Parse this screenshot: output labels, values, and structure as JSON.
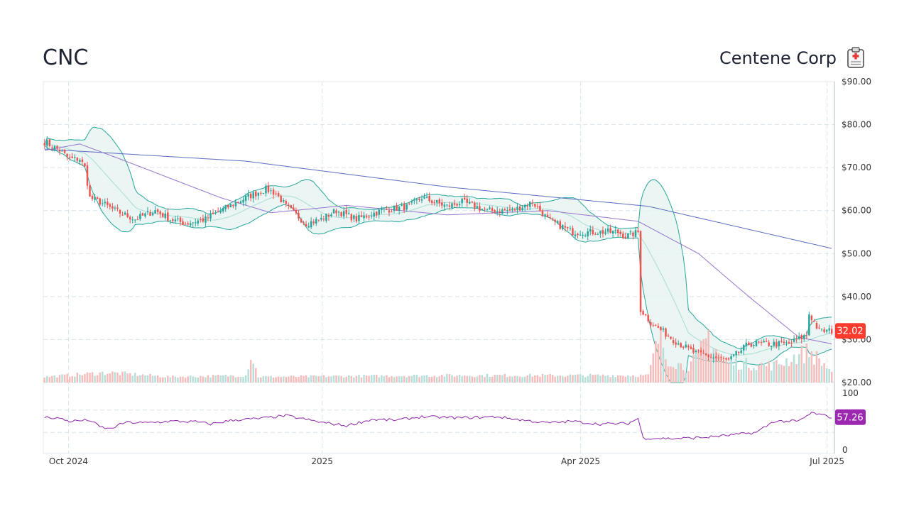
{
  "header": {
    "ticker": "CNC",
    "company_name": "Centene Corp",
    "logo_icon": "clipboard-medical-icon"
  },
  "colors": {
    "up": "#26a69a",
    "down": "#ef5350",
    "bb_line": "#26a69a",
    "bb_fill": "#e6f3f2",
    "ma_long": "#5c6bc0",
    "ma_mid": "#9575cd",
    "rsi": "#8e24aa",
    "price_badge": "#ff3b30",
    "rsi_badge": "#9c27b0"
  },
  "chart_data": {
    "type": "candlestick",
    "title": "CNC",
    "price_axis": {
      "ylim": [
        20,
        90
      ],
      "ticks": [
        20,
        30,
        40,
        50,
        60,
        70,
        80,
        90
      ],
      "tick_labels": [
        "$20.00",
        "$30.00",
        "$40.00",
        "$50.00",
        "$60.00",
        "$70.00",
        "$80.00",
        "$90.00"
      ]
    },
    "x_axis": {
      "tick_labels": [
        "Oct 2024",
        "2025",
        "Apr 2025",
        "Jul 2025"
      ]
    },
    "last_price": "32.02",
    "indicators": [
      "Bollinger Bands",
      "Moving Average",
      "Moving Average",
      "Volume",
      "RSI"
    ],
    "rsi_axis": {
      "ylim": [
        0,
        100
      ],
      "tick_labels": [
        "100",
        "0"
      ]
    },
    "last_rsi": "57.26",
    "close_anchors": [
      [
        0,
        76
      ],
      [
        6,
        74
      ],
      [
        10,
        72
      ],
      [
        14,
        72
      ],
      [
        16,
        70
      ],
      [
        18,
        63
      ],
      [
        22,
        62
      ],
      [
        28,
        60
      ],
      [
        36,
        58
      ],
      [
        44,
        60
      ],
      [
        50,
        58
      ],
      [
        56,
        57
      ],
      [
        64,
        58
      ],
      [
        70,
        60
      ],
      [
        80,
        63
      ],
      [
        88,
        65
      ],
      [
        92,
        64
      ],
      [
        96,
        61
      ],
      [
        104,
        57
      ],
      [
        110,
        58
      ],
      [
        116,
        60
      ],
      [
        124,
        58
      ],
      [
        134,
        60
      ],
      [
        145,
        61
      ],
      [
        150,
        63
      ],
      [
        160,
        61
      ],
      [
        166,
        62
      ],
      [
        176,
        60
      ],
      [
        186,
        60
      ],
      [
        194,
        62
      ],
      [
        200,
        58
      ],
      [
        210,
        55
      ],
      [
        218,
        55
      ],
      [
        228,
        55
      ],
      [
        231,
        54
      ],
      [
        236,
        55
      ],
      [
        237,
        37
      ],
      [
        241,
        34
      ],
      [
        250,
        30
      ],
      [
        258,
        27
      ],
      [
        265,
        26
      ],
      [
        272,
        25
      ],
      [
        280,
        29
      ],
      [
        290,
        29
      ],
      [
        296,
        29
      ],
      [
        303,
        31
      ],
      [
        304,
        36
      ],
      [
        308,
        32
      ],
      [
        313,
        32
      ]
    ],
    "ma_long_anchors": [
      [
        0,
        74.3
      ],
      [
        80,
        71.5
      ],
      [
        160,
        65.5
      ],
      [
        240,
        61
      ],
      [
        313,
        51.2
      ]
    ],
    "ma_mid_anchors": [
      [
        0,
        74
      ],
      [
        14,
        75.5
      ],
      [
        30,
        72
      ],
      [
        70,
        63
      ],
      [
        90,
        59.5
      ],
      [
        120,
        61.2
      ],
      [
        160,
        59
      ],
      [
        200,
        60
      ],
      [
        236,
        57.5
      ],
      [
        260,
        50
      ],
      [
        280,
        40
      ],
      [
        300,
        30.5
      ],
      [
        313,
        29
      ]
    ],
    "volume_anchors": [
      [
        0,
        0.1
      ],
      [
        25,
        0.25
      ],
      [
        50,
        0.1
      ],
      [
        80,
        0.15
      ],
      [
        82,
        0.9
      ],
      [
        85,
        0.1
      ],
      [
        160,
        0.15
      ],
      [
        240,
        0.15
      ],
      [
        245,
        1.7
      ],
      [
        247,
        0.8
      ],
      [
        255,
        0.4
      ],
      [
        260,
        0.8
      ],
      [
        264,
        1.6
      ],
      [
        270,
        0.6
      ],
      [
        290,
        0.5
      ],
      [
        304,
        1.0
      ],
      [
        313,
        0.3
      ]
    ],
    "rsi_anchors": [
      [
        0,
        57
      ],
      [
        5,
        56
      ],
      [
        10,
        50
      ],
      [
        18,
        52
      ],
      [
        22,
        40
      ],
      [
        26,
        36
      ],
      [
        32,
        48
      ],
      [
        40,
        47
      ],
      [
        50,
        50
      ],
      [
        60,
        49
      ],
      [
        66,
        45
      ],
      [
        75,
        52
      ],
      [
        86,
        55
      ],
      [
        96,
        60
      ],
      [
        110,
        48
      ],
      [
        120,
        42
      ],
      [
        130,
        53
      ],
      [
        140,
        52
      ],
      [
        150,
        58
      ],
      [
        165,
        56
      ],
      [
        180,
        58
      ],
      [
        190,
        52
      ],
      [
        200,
        47
      ],
      [
        210,
        50
      ],
      [
        220,
        45
      ],
      [
        232,
        46
      ],
      [
        236,
        55
      ],
      [
        238,
        20
      ],
      [
        250,
        19
      ],
      [
        262,
        21
      ],
      [
        270,
        24
      ],
      [
        283,
        30
      ],
      [
        290,
        50
      ],
      [
        300,
        50
      ],
      [
        305,
        65
      ],
      [
        313,
        57
      ]
    ]
  }
}
